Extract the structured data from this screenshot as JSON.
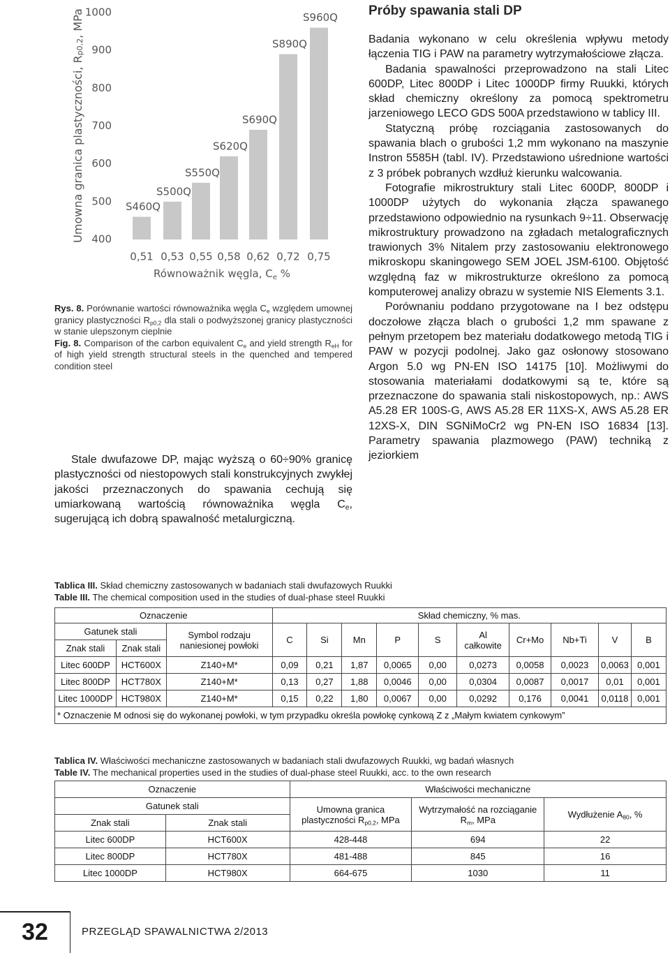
{
  "chart_data": {
    "type": "bar",
    "y_label": [
      "Umowna granica plastyczności, R",
      "p0,2",
      ", MPa"
    ],
    "x_label": [
      "Równoważnik węgla, C",
      "e",
      " %"
    ],
    "categories": [
      "0,51",
      "0,53",
      "0,55",
      "0,58",
      "0,62",
      "0,72",
      "0,75"
    ],
    "values": [
      460,
      500,
      550,
      620,
      690,
      890,
      960
    ],
    "bar_labels": [
      "S460Q",
      "S500Q",
      "S550Q",
      "S620Q",
      "S690Q",
      "S890Q",
      "S960Q"
    ],
    "color": "#c8c8c8",
    "ylim": [
      400,
      1000
    ],
    "yticks": [
      400,
      500,
      600,
      700,
      800,
      900,
      1000
    ]
  },
  "figure_caption": {
    "pl_label": "Rys. 8.",
    "pl_text": [
      " Porównanie wartości równoważnika węgla C",
      "e",
      " względem umownej granicy plastyczności R",
      "p0,2",
      " dla stali o podwyższonej granicy plastyczności w stanie ulepszonym cieplnie"
    ],
    "en_label": "Fig. 8.",
    "en_text": [
      " Comparison of the carbon equivalent C",
      "e",
      " and yield strength R",
      "eH",
      " for of high yield strength structural steels in the quenched and tempered condition steel"
    ]
  },
  "left_text": [
    "Stale dwufazowe DP, mając wyższą o 60÷90% granicę plastyczności od niestopowych stali konstrukcyjnych zwykłej jakości przeznaczonych do spawania cechują się umiarkowaną wartością równoważnika węgla C",
    "e",
    ", sugerującą ich dobrą spawalność metalurgiczną."
  ],
  "section": {
    "title": "Próby spawania stali DP",
    "paragraphs": [
      "Badania wykonano w celu określenia wpływu metody łączenia TIG i PAW na parametry wytrzymałościowe złącza.",
      "Badania spawalności przeprowadzono na stali Litec 600DP, Litec 800DP i Litec 1000DP firmy Ruukki, których skład chemiczny określony za pomocą spektrometru jarzeniowego LECO GDS 500A przedstawiono w tablicy III.",
      "Statyczną próbę rozciągania zastosowanych do spawania blach o grubości 1,2 mm wykonano na maszynie Instron 5585H (tabl. IV). Przedstawiono uśrednione wartości z 3 próbek pobranych wzdłuż kierunku walcowania.",
      "Fotografie mikrostruktury stali Litec 600DP, 800DP i 1000DP użytych do wykonania złącza spawanego przedstawiono odpowiednio na rysunkach 9÷11. Obserwację mikrostruktury prowadzono na zgładach metalograficznych trawionych 3% Nitalem przy zastosowaniu elektronowego mikroskopu skaningowego SEM JOEL JSM-6100. Objętość względną faz w mikrostrukturze określono za pomocą komputerowej analizy obrazu w systemie NIS Elements 3.1.",
      "Porównaniu poddano przygotowane na I bez odstępu doczołowe złącza blach o grubości 1,2 mm spawane z pełnym przetopem bez materiału dodatkowego metodą TIG i PAW w pozycji podolnej. Jako gaz osłonowy stosowano Argon 5.0 wg PN-EN ISO 14175 [10]. Możliwymi do stosowania materiałami dodatkowymi są te, które są przeznaczone do spawania stali niskostopowych, np.: AWS A5.28 ER 100S-G, AWS A5.28 ER 11XS-X, AWS A5.28 ER 12XS-X, DIN SGNiMoCr2 wg PN-EN ISO 16834 [13]. Parametry spawania plazmowego (PAW) techniką z jeziorkiem"
    ]
  },
  "table3": {
    "caption_pl": {
      "label": "Tablica III.",
      "text": " Skład chemiczny zastosowanych w badaniach stali dwufazowych Ruukki"
    },
    "caption_en": {
      "label": "Table III.",
      "text": " The chemical composition used in the studies of dual-phase steel Ruukki"
    },
    "header": {
      "designation": "Oznaczenie",
      "composition": "Skład chemiczny, % mas.",
      "grade": "Gatunek stali",
      "mark1": "Znak stali",
      "mark2": "Znak stali",
      "coating": "Symbol rodzaju naniesionej powłoki",
      "elements": [
        "C",
        "Si",
        "Mn",
        "P",
        "S",
        "Al całkowite",
        "Cr+Mo",
        "Nb+Ti",
        "V",
        "B"
      ]
    },
    "rows": [
      [
        "Litec 600DP",
        "HCT600X",
        "Z140+M*",
        "0,09",
        "0,21",
        "1,87",
        "0,0065",
        "0,00",
        "0,0273",
        "0,0058",
        "0,0023",
        "0,0063",
        "0,001"
      ],
      [
        "Litec 800DP",
        "HCT780X",
        "Z140+M*",
        "0,13",
        "0,27",
        "1,88",
        "0,0046",
        "0,00",
        "0,0304",
        "0,0087",
        "0,0017",
        "0,01",
        "0,001"
      ],
      [
        "Litec 1000DP",
        "HCT980X",
        "Z140+M*",
        "0,15",
        "0,22",
        "1,80",
        "0,0067",
        "0,00",
        "0,0292",
        "0,176",
        "0,0041",
        "0,0118",
        "0,001"
      ]
    ],
    "footnote": "* Oznaczenie M odnosi się do wykonanej powłoki, w tym przypadku określa powłokę cynkową Z z „Małym kwiatem cynkowym”"
  },
  "table4": {
    "caption_pl": {
      "label": "Tablica IV.",
      "text": " Właściwości mechaniczne zastosowanych w badaniach stali dwufazowych Ruukki, wg badań własnych"
    },
    "caption_en": {
      "label": "Table IV.",
      "text": " The mechanical properties used in the studies of dual-phase steel Ruukki, acc. to the own research"
    },
    "header": {
      "designation": "Oznaczenie",
      "properties": "Właściwości mechaniczne",
      "grade": "Gatunek stali",
      "mark1": "Znak stali",
      "mark2": "Znak stali",
      "yield": [
        "Umowna granica plastyczności R",
        "p0,2",
        ", MPa"
      ],
      "tensile": [
        "Wytrzymałość na rozciąganie R",
        "m",
        ", MPa"
      ],
      "elongation": [
        "Wydłużenie A",
        "80",
        ", %"
      ]
    },
    "rows": [
      [
        "Litec 600DP",
        "HCT600X",
        "428-448",
        "694",
        "22"
      ],
      [
        "Litec 800DP",
        "HCT780X",
        "481-488",
        "845",
        "16"
      ],
      [
        "Litec 1000DP",
        "HCT980X",
        "664-675",
        "1030",
        "11"
      ]
    ]
  },
  "footer": {
    "page": "32",
    "journal": "PRZEGLĄD SPAWALNICTWA 2/2013"
  }
}
